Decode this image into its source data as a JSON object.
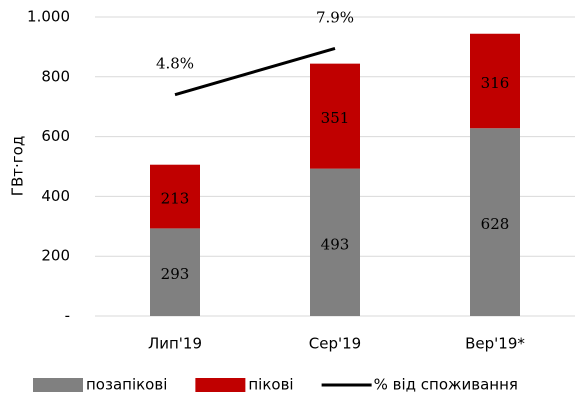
{
  "chart_data": {
    "type": "bar",
    "ylabel": "ГВт·год",
    "categories": [
      "Лип'19",
      "Сер'19",
      "Вер'19*"
    ],
    "series": [
      {
        "name": "позапікові",
        "color": "#808080",
        "values": [
          293,
          493,
          628
        ]
      },
      {
        "name": "пікові",
        "color": "#c00000",
        "values": [
          213,
          351,
          316
        ]
      },
      {
        "name": "% від споживання",
        "color": "#000000",
        "type": "line",
        "axis": "y2",
        "values": [
          4.8,
          7.9,
          null
        ],
        "value_labels": [
          "4.8%",
          "7.9%",
          null
        ]
      }
    ],
    "ylim": [
      0,
      1000
    ],
    "yticks": [
      {
        "value": 0,
        "label": "-"
      },
      200,
      400,
      600,
      800,
      {
        "value": 1000,
        "label": "1.000"
      }
    ],
    "y2lim": [
      -10,
      10
    ],
    "grid": true,
    "legend": "bottom"
  }
}
